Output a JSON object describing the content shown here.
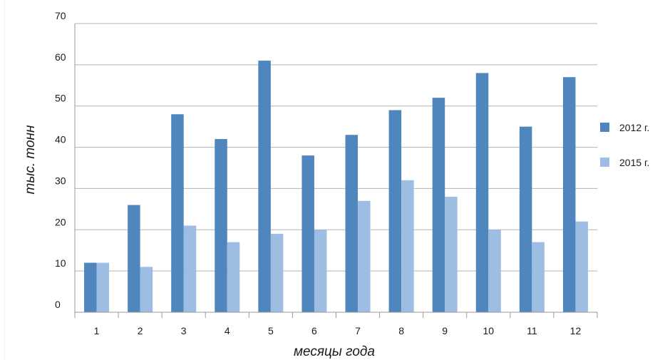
{
  "chart_data": {
    "type": "bar",
    "title": "",
    "xlabel": "месяцы года",
    "ylabel": "тыс. тонн",
    "ylim": [
      0,
      70
    ],
    "yticks": [
      0,
      10,
      20,
      30,
      40,
      50,
      60,
      70
    ],
    "grid": true,
    "legend_position": "right",
    "categories": [
      "1",
      "2",
      "3",
      "4",
      "5",
      "6",
      "7",
      "8",
      "9",
      "10",
      "11",
      "12"
    ],
    "series": [
      {
        "name": "2012 г.",
        "color": "#4f86bd",
        "values": [
          12,
          26,
          48,
          42,
          61,
          38,
          43,
          49,
          52,
          58,
          45,
          57
        ]
      },
      {
        "name": "2015 г.",
        "color": "#9dbde3",
        "values": [
          12,
          11,
          21,
          17,
          19,
          20,
          27,
          32,
          28,
          20,
          17,
          22
        ]
      }
    ]
  }
}
